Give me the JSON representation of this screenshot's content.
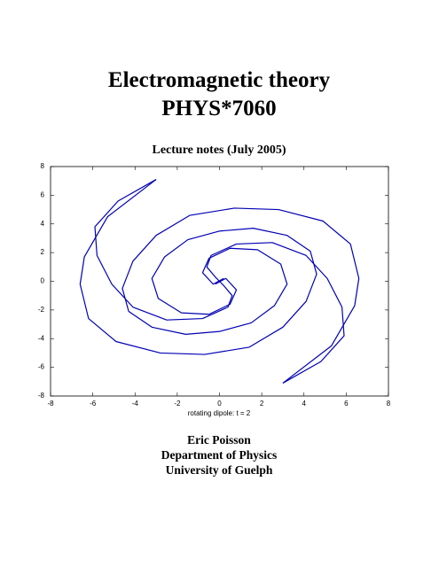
{
  "title": [
    "Electromagnetic theory",
    "PHYS*7060"
  ],
  "subtitle": "Lecture notes (July 2005)",
  "chart_data": {
    "type": "line",
    "xlabel": "rotating dipole: t = 2",
    "xlim": [
      -8,
      8
    ],
    "ylim": [
      -8,
      8
    ],
    "xticks": [
      -8,
      -6,
      -4,
      -2,
      0,
      2,
      4,
      6,
      8
    ],
    "yticks": [
      -8,
      -6,
      -4,
      -2,
      0,
      2,
      4,
      6,
      8
    ],
    "color": "#0000b4",
    "series": [
      {
        "x": [
          -3,
          -5.3,
          -6.4,
          -6.6,
          -6.2,
          -4.9,
          -2.8,
          -0.7,
          1.4,
          3,
          4.1,
          4.6,
          4.3,
          3.2,
          1.6,
          0,
          -1.5,
          -2.6,
          -3.2,
          -2.9,
          -1.8,
          -0.5,
          0.5,
          0.8,
          0.3,
          -0.2
        ],
        "y": [
          7.1,
          4.5,
          1.7,
          -0.2,
          -2.6,
          -4.2,
          -5,
          -5.1,
          -4.6,
          -3.2,
          -1.4,
          0.5,
          2.1,
          3.2,
          3.7,
          3.5,
          2.9,
          1.7,
          0.2,
          -1.2,
          -2.2,
          -2.3,
          -1.6,
          -0.6,
          0.2,
          -0.2
        ]
      },
      {
        "x": [
          -3,
          -4.8,
          -5.9,
          -5.8,
          -5.1,
          -4.1,
          -2.5,
          -0.8,
          0.4,
          0.6,
          0.2,
          0
        ],
        "y": [
          7.1,
          5.6,
          3.8,
          1.8,
          -0.2,
          -1.8,
          -2.7,
          -2.6,
          -1.8,
          -1,
          -0.3,
          0
        ]
      },
      {
        "x": [
          3,
          5.3,
          6.4,
          6.6,
          6.2,
          4.9,
          2.8,
          0.7,
          -1.4,
          -3,
          -4.1,
          -4.6,
          -4.3,
          -3.2,
          -1.6,
          0,
          1.5,
          2.6,
          3.2,
          2.9,
          1.8,
          0.5,
          -0.5,
          -0.8,
          -0.3,
          0.2
        ],
        "y": [
          -7.1,
          -4.5,
          -1.7,
          0.2,
          2.6,
          4.2,
          5,
          5.1,
          4.6,
          3.2,
          1.4,
          -0.5,
          -2.1,
          -3.2,
          -3.7,
          -3.5,
          -2.9,
          -1.7,
          -0.2,
          1.2,
          2.2,
          2.3,
          1.6,
          0.6,
          -0.2,
          0.2
        ]
      },
      {
        "x": [
          3,
          4.8,
          5.9,
          5.8,
          5.1,
          4.1,
          2.5,
          0.8,
          -0.4,
          -0.6,
          -0.2,
          0
        ],
        "y": [
          -7.1,
          -5.6,
          -3.8,
          -1.8,
          0.2,
          1.8,
          2.7,
          2.6,
          1.8,
          1,
          0.3,
          0
        ]
      }
    ]
  },
  "author": [
    "Eric Poisson",
    "Department of Physics",
    "University of Guelph"
  ]
}
